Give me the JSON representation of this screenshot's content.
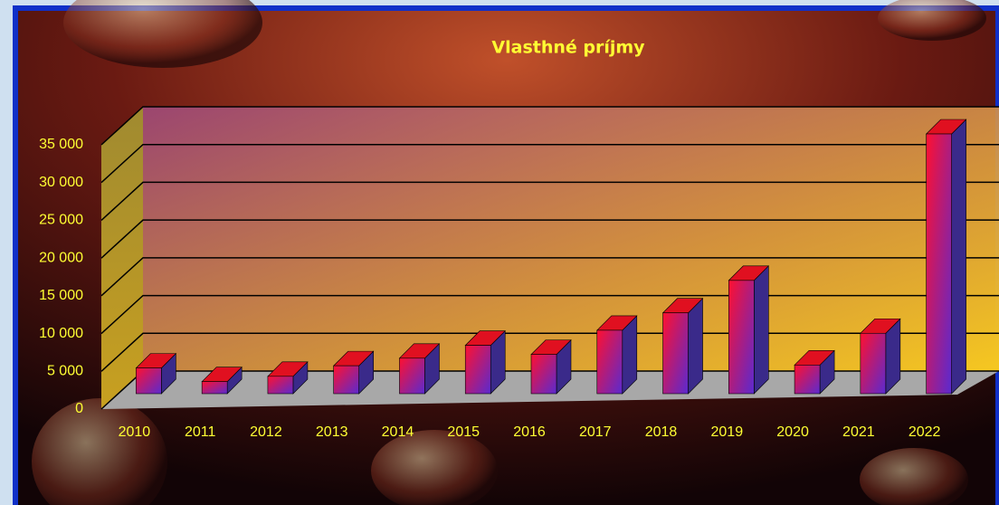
{
  "chart_data": {
    "type": "bar3d",
    "title": "Vlasthné príjmy",
    "categories": [
      "2010",
      "2011",
      "2012",
      "2013",
      "2014",
      "2015",
      "2016",
      "2017",
      "2018",
      "2019",
      "2020",
      "2021",
      "2022"
    ],
    "values": [
      3400,
      1600,
      2300,
      3700,
      4700,
      6400,
      5200,
      8400,
      10700,
      15000,
      3800,
      8000,
      34400
    ],
    "ylim": [
      0,
      35000
    ],
    "yticks": [
      0,
      {
        "value": 5000,
        "label": "5 000"
      },
      {
        "value": 10000,
        "label": "10 000"
      },
      {
        "value": 15000,
        "label": "15 000"
      },
      {
        "value": 20000,
        "label": "20 000"
      },
      {
        "value": 25000,
        "label": "25 000"
      },
      {
        "value": 30000,
        "label": "30 000"
      },
      {
        "value": 35000,
        "label": "35 000"
      }
    ],
    "grid": true
  }
}
